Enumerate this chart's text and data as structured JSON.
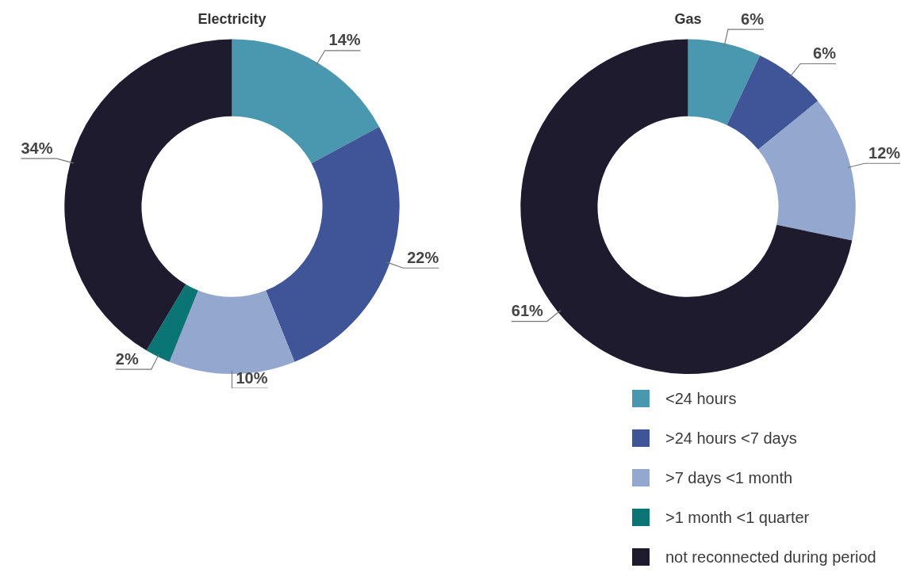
{
  "chart_data": [
    {
      "type": "donut",
      "title": "Electricity",
      "categories": [
        null,
        null,
        null,
        null,
        null
      ],
      "values": [
        14,
        22,
        10,
        2,
        34
      ],
      "value_labels": [
        "14%",
        "22%",
        "10%",
        "2%",
        "34%"
      ],
      "colors": [
        "#4a97b0",
        "#3f5597",
        "#94a7cf",
        "#0b7474",
        "#1e1b2e"
      ],
      "legend": false
    },
    {
      "type": "donut",
      "title": "Gas",
      "categories": [
        "<24 hours",
        ">24 hours <7 days",
        ">7 days <1 month",
        ">1 month <1 quarter",
        "not reconnected during period"
      ],
      "values": [
        6,
        6,
        12,
        null,
        61
      ],
      "value_labels": [
        "6%",
        "6%",
        "12%",
        null,
        "61%"
      ],
      "colors": [
        "#4a97b0",
        "#3f5597",
        "#94a7cf",
        "#0b7474",
        "#1e1b2e"
      ],
      "legend": "bottom right"
    }
  ]
}
